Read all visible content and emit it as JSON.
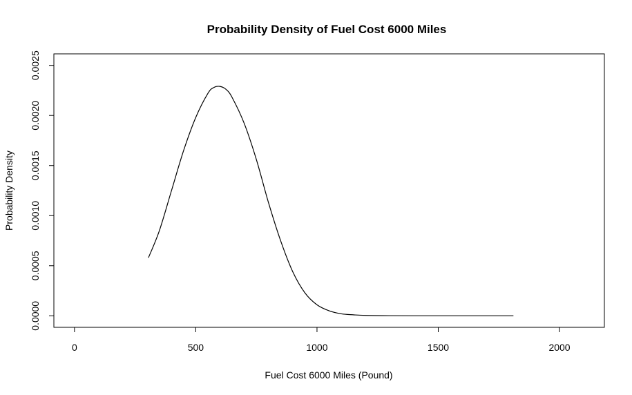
{
  "chart_data": {
    "type": "line",
    "title": "Probability Density of Fuel Cost 6000 Miles",
    "xlabel": "Fuel Cost 6000 Miles (Pound)",
    "ylabel": "Probability Density",
    "xlim": [
      -85,
      2185
    ],
    "ylim": [
      -0.000115,
      0.002615
    ],
    "x_ticks": [
      0,
      500,
      1000,
      1500,
      2000
    ],
    "x_tick_labels": [
      "0",
      "500",
      "1000",
      "1500",
      "2000"
    ],
    "y_ticks": [
      0,
      0.0005,
      0.001,
      0.0015,
      0.002,
      0.0025
    ],
    "y_tick_labels": [
      "0.0000",
      "0.0005",
      "0.0010",
      "0.0015",
      "0.0020",
      "0.0025"
    ],
    "grid": false,
    "series": [
      {
        "color": "#000000",
        "x": [
          305,
          350,
          400,
          450,
          500,
          550,
          575,
          600,
          625,
          650,
          700,
          750,
          800,
          850,
          900,
          950,
          1000,
          1050,
          1100,
          1150,
          1200,
          1300,
          1400,
          1500,
          1600,
          1700,
          1810
        ],
        "y": [
          0.00058,
          0.00085,
          0.00125,
          0.00165,
          0.00198,
          0.00222,
          0.00228,
          0.00229,
          0.00226,
          0.00218,
          0.00192,
          0.00156,
          0.00113,
          0.00075,
          0.00044,
          0.00023,
          0.00011,
          5e-05,
          2e-05,
          1e-05,
          4e-06,
          1e-06,
          0,
          0,
          0,
          0,
          0
        ]
      }
    ]
  }
}
